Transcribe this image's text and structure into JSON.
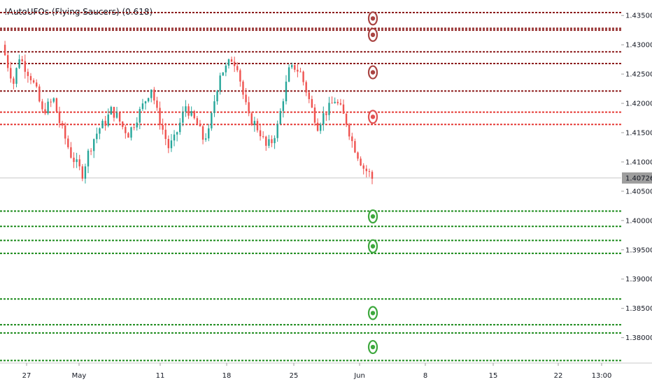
{
  "indicator": {
    "title": "!AutoUFOs (Flying Saucers) (0.618)"
  },
  "colors": {
    "bull": "#26a69a",
    "bear": "#ef5350",
    "resistance_dark": "#8b1a1a",
    "resistance_light": "#e53935",
    "support": "#1b8a1b",
    "ufo_dark": "#a94442",
    "ufo_light": "#e05252",
    "ufo_green": "#3da83d",
    "last_price_bg": "#9e9e9e",
    "last_price_line": "#c8c8c8"
  },
  "chart_data": {
    "type": "candlestick",
    "title": "!AutoUFOs (Flying Saucers) (0.618)",
    "ylim": [
      1.3765,
      1.4355
    ],
    "y_ticks": [
      {
        "value": 1.435,
        "label": "1.43500"
      },
      {
        "value": 1.43,
        "label": "1.43000"
      },
      {
        "value": 1.425,
        "label": "1.42500"
      },
      {
        "value": 1.42,
        "label": "1.42000"
      },
      {
        "value": 1.415,
        "label": "1.41500"
      },
      {
        "value": 1.41,
        "label": "1.41000"
      },
      {
        "value": 1.405,
        "label": "1.40500"
      },
      {
        "value": 1.4,
        "label": "1.40000"
      },
      {
        "value": 1.395,
        "label": "1.39500"
      },
      {
        "value": 1.39,
        "label": "1.39000"
      },
      {
        "value": 1.385,
        "label": "1.38500"
      },
      {
        "value": 1.38,
        "label": "1.38000"
      }
    ],
    "x_ticks": [
      "27",
      "May",
      "11",
      "18",
      "25",
      "Jun",
      "8",
      "15",
      "22",
      "13:00"
    ],
    "last_price": {
      "value": 1.40726,
      "label": "1.40726"
    },
    "resistance_levels": [
      1.4355,
      1.4328,
      1.4325,
      1.4288,
      1.4268,
      1.4221,
      1.4185,
      1.4164
    ],
    "support_levels": [
      1.4016,
      1.399,
      1.3966,
      1.3944,
      1.3866,
      1.3822,
      1.3808,
      1.3761
    ],
    "ufo_markers": [
      {
        "value": 1.4345,
        "kind": "resistance"
      },
      {
        "value": 1.4317,
        "kind": "resistance"
      },
      {
        "value": 1.4253,
        "kind": "resistance"
      },
      {
        "value": 1.4177,
        "kind": "resistance_near"
      },
      {
        "value": 1.4007,
        "kind": "support"
      },
      {
        "value": 1.3956,
        "kind": "support"
      },
      {
        "value": 1.3842,
        "kind": "support"
      },
      {
        "value": 1.3784,
        "kind": "support"
      }
    ],
    "close_path": [
      [
        0,
        1.43
      ],
      [
        2,
        1.4265
      ],
      [
        4,
        1.4235
      ],
      [
        6,
        1.428
      ],
      [
        8,
        1.4262
      ],
      [
        10,
        1.4245
      ],
      [
        12,
        1.422
      ],
      [
        14,
        1.4185
      ],
      [
        16,
        1.4196
      ],
      [
        18,
        1.4206
      ],
      [
        20,
        1.4168
      ],
      [
        22,
        1.414
      ],
      [
        24,
        1.4112
      ],
      [
        26,
        1.4096
      ],
      [
        28,
        1.408
      ],
      [
        30,
        1.4115
      ],
      [
        32,
        1.414
      ],
      [
        34,
        1.4158
      ],
      [
        36,
        1.4168
      ],
      [
        38,
        1.4188
      ],
      [
        40,
        1.4178
      ],
      [
        42,
        1.416
      ],
      [
        44,
        1.4148
      ],
      [
        46,
        1.4166
      ],
      [
        48,
        1.4186
      ],
      [
        50,
        1.4206
      ],
      [
        52,
        1.4227
      ],
      [
        54,
        1.4185
      ],
      [
        56,
        1.4155
      ],
      [
        58,
        1.4125
      ],
      [
        60,
        1.4138
      ],
      [
        62,
        1.4166
      ],
      [
        64,
        1.4196
      ],
      [
        66,
        1.4178
      ],
      [
        68,
        1.4165
      ],
      [
        70,
        1.414
      ],
      [
        72,
        1.415
      ],
      [
        74,
        1.4205
      ],
      [
        76,
        1.4252
      ],
      [
        78,
        1.426
      ],
      [
        80,
        1.4276
      ],
      [
        82,
        1.4265
      ],
      [
        84,
        1.4215
      ],
      [
        86,
        1.4175
      ],
      [
        88,
        1.4166
      ],
      [
        90,
        1.415
      ],
      [
        92,
        1.4126
      ],
      [
        94,
        1.4135
      ],
      [
        96,
        1.416
      ],
      [
        98,
        1.421
      ],
      [
        100,
        1.4255
      ],
      [
        102,
        1.4262
      ],
      [
        104,
        1.4252
      ],
      [
        106,
        1.4222
      ],
      [
        108,
        1.419
      ],
      [
        110,
        1.4162
      ],
      [
        112,
        1.418
      ],
      [
        114,
        1.4192
      ],
      [
        116,
        1.4206
      ],
      [
        118,
        1.419
      ],
      [
        120,
        1.4168
      ],
      [
        122,
        1.4135
      ],
      [
        124,
        1.4112
      ],
      [
        126,
        1.409
      ],
      [
        128,
        1.408
      ],
      [
        129,
        1.4072
      ]
    ]
  }
}
